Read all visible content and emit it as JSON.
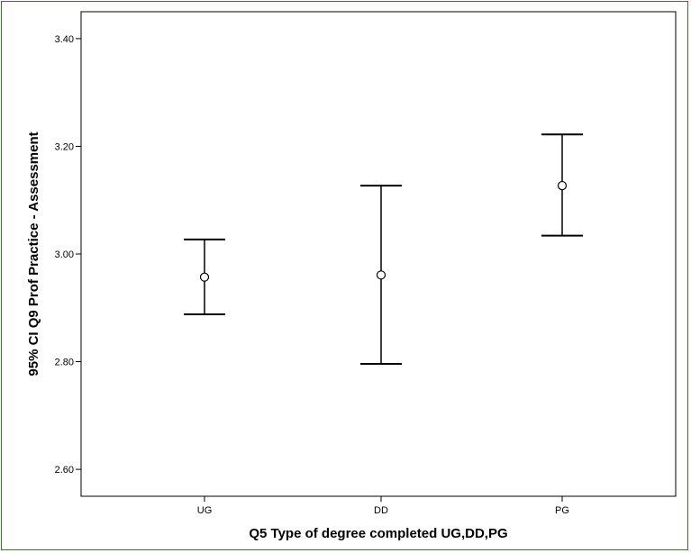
{
  "chart_data": {
    "type": "errorbar",
    "categories": [
      "UG",
      "DD",
      "PG"
    ],
    "series": [
      {
        "values": [
          2.957,
          2.961,
          3.127
        ],
        "lower": [
          2.888,
          2.796,
          3.034
        ],
        "upper": [
          3.027,
          3.127,
          3.222
        ]
      }
    ],
    "xlabel": "Q5 Type of degree completed UG,DD,PG",
    "ylabel": "95% CI Q9 Prof Practice - Assessment",
    "ylim": [
      2.55,
      3.45
    ],
    "yticks": [
      "2.60",
      "2.80",
      "3.00",
      "3.20",
      "3.40"
    ],
    "grid": false,
    "colors": {
      "frame": "#2e7d1f",
      "marks": "#000000"
    }
  }
}
